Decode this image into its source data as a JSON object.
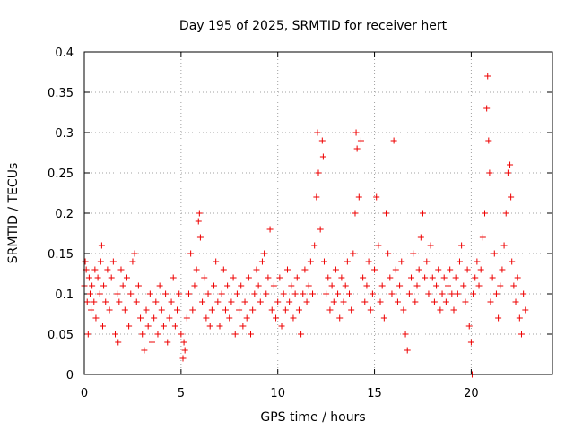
{
  "chart_data": {
    "type": "scatter",
    "title": "Day 195 of 2025, SRMTID for receiver hert",
    "xlabel": "GPS time / hours",
    "ylabel": "SRMTID / TECUs",
    "xlim": [
      0,
      24.2
    ],
    "ylim": [
      0,
      0.4
    ],
    "xticks": [
      0,
      5,
      10,
      15,
      20
    ],
    "xtick_labels": [
      "0",
      "5",
      "10",
      "15",
      "20"
    ],
    "yticks": [
      0,
      0.05,
      0.1,
      0.15,
      0.2,
      0.25,
      0.3,
      0.35,
      0.4
    ],
    "ytick_labels": [
      "0",
      "0.05",
      "0.1",
      "0.15",
      "0.2",
      "0.25",
      "0.3",
      "0.35",
      "0.4"
    ],
    "grid": true,
    "marker": "plus",
    "color": "#ee0000",
    "series": [
      {
        "name": "SRMTID",
        "points": [
          [
            0.0,
            0.11
          ],
          [
            0.05,
            0.14
          ],
          [
            0.1,
            0.13
          ],
          [
            0.15,
            0.09
          ],
          [
            0.2,
            0.05
          ],
          [
            0.25,
            0.12
          ],
          [
            0.3,
            0.1
          ],
          [
            0.35,
            0.08
          ],
          [
            0.4,
            0.11
          ],
          [
            0.5,
            0.09
          ],
          [
            0.55,
            0.13
          ],
          [
            0.6,
            0.07
          ],
          [
            0.7,
            0.12
          ],
          [
            0.8,
            0.1
          ],
          [
            0.85,
            0.14
          ],
          [
            0.9,
            0.16
          ],
          [
            0.95,
            0.06
          ],
          [
            1.0,
            0.11
          ],
          [
            1.1,
            0.09
          ],
          [
            1.2,
            0.13
          ],
          [
            1.3,
            0.08
          ],
          [
            1.4,
            0.12
          ],
          [
            1.5,
            0.14
          ],
          [
            1.6,
            0.05
          ],
          [
            1.7,
            0.1
          ],
          [
            1.75,
            0.04
          ],
          [
            1.8,
            0.09
          ],
          [
            1.9,
            0.13
          ],
          [
            2.0,
            0.11
          ],
          [
            2.1,
            0.08
          ],
          [
            2.2,
            0.12
          ],
          [
            2.3,
            0.06
          ],
          [
            2.4,
            0.1
          ],
          [
            2.5,
            0.14
          ],
          [
            2.6,
            0.15
          ],
          [
            2.7,
            0.09
          ],
          [
            2.8,
            0.11
          ],
          [
            2.9,
            0.07
          ],
          [
            3.0,
            0.05
          ],
          [
            3.1,
            0.03
          ],
          [
            3.2,
            0.08
          ],
          [
            3.3,
            0.06
          ],
          [
            3.4,
            0.1
          ],
          [
            3.5,
            0.04
          ],
          [
            3.6,
            0.07
          ],
          [
            3.7,
            0.09
          ],
          [
            3.8,
            0.05
          ],
          [
            3.9,
            0.11
          ],
          [
            4.0,
            0.08
          ],
          [
            4.1,
            0.06
          ],
          [
            4.2,
            0.1
          ],
          [
            4.3,
            0.04
          ],
          [
            4.4,
            0.07
          ],
          [
            4.5,
            0.09
          ],
          [
            4.6,
            0.12
          ],
          [
            4.7,
            0.06
          ],
          [
            4.8,
            0.08
          ],
          [
            4.9,
            0.1
          ],
          [
            5.0,
            0.05
          ],
          [
            5.1,
            0.02
          ],
          [
            5.15,
            0.04
          ],
          [
            5.2,
            0.03
          ],
          [
            5.3,
            0.07
          ],
          [
            5.4,
            0.1
          ],
          [
            5.5,
            0.15
          ],
          [
            5.6,
            0.08
          ],
          [
            5.7,
            0.11
          ],
          [
            5.8,
            0.13
          ],
          [
            5.9,
            0.19
          ],
          [
            5.95,
            0.2
          ],
          [
            6.0,
            0.17
          ],
          [
            6.1,
            0.09
          ],
          [
            6.2,
            0.12
          ],
          [
            6.3,
            0.07
          ],
          [
            6.4,
            0.1
          ],
          [
            6.5,
            0.06
          ],
          [
            6.6,
            0.08
          ],
          [
            6.7,
            0.11
          ],
          [
            6.8,
            0.14
          ],
          [
            6.9,
            0.09
          ],
          [
            7.0,
            0.06
          ],
          [
            7.1,
            0.1
          ],
          [
            7.2,
            0.13
          ],
          [
            7.3,
            0.08
          ],
          [
            7.4,
            0.11
          ],
          [
            7.5,
            0.07
          ],
          [
            7.6,
            0.09
          ],
          [
            7.7,
            0.12
          ],
          [
            7.8,
            0.05
          ],
          [
            7.9,
            0.1
          ],
          [
            8.0,
            0.08
          ],
          [
            8.1,
            0.11
          ],
          [
            8.2,
            0.06
          ],
          [
            8.3,
            0.09
          ],
          [
            8.4,
            0.07
          ],
          [
            8.5,
            0.12
          ],
          [
            8.6,
            0.05
          ],
          [
            8.7,
            0.08
          ],
          [
            8.8,
            0.1
          ],
          [
            8.9,
            0.13
          ],
          [
            9.0,
            0.11
          ],
          [
            9.1,
            0.09
          ],
          [
            9.2,
            0.14
          ],
          [
            9.3,
            0.15
          ],
          [
            9.4,
            0.1
          ],
          [
            9.5,
            0.12
          ],
          [
            9.6,
            0.18
          ],
          [
            9.7,
            0.08
          ],
          [
            9.8,
            0.11
          ],
          [
            9.9,
            0.07
          ],
          [
            10.0,
            0.09
          ],
          [
            10.1,
            0.12
          ],
          [
            10.2,
            0.06
          ],
          [
            10.3,
            0.1
          ],
          [
            10.4,
            0.08
          ],
          [
            10.5,
            0.13
          ],
          [
            10.6,
            0.09
          ],
          [
            10.7,
            0.11
          ],
          [
            10.8,
            0.07
          ],
          [
            10.9,
            0.1
          ],
          [
            11.0,
            0.12
          ],
          [
            11.1,
            0.08
          ],
          [
            11.2,
            0.05
          ],
          [
            11.3,
            0.1
          ],
          [
            11.4,
            0.13
          ],
          [
            11.5,
            0.09
          ],
          [
            11.6,
            0.11
          ],
          [
            11.7,
            0.14
          ],
          [
            11.8,
            0.1
          ],
          [
            11.9,
            0.16
          ],
          [
            12.0,
            0.22
          ],
          [
            12.05,
            0.3
          ],
          [
            12.1,
            0.25
          ],
          [
            12.2,
            0.18
          ],
          [
            12.3,
            0.29
          ],
          [
            12.35,
            0.27
          ],
          [
            12.4,
            0.14
          ],
          [
            12.5,
            0.1
          ],
          [
            12.6,
            0.12
          ],
          [
            12.7,
            0.08
          ],
          [
            12.8,
            0.11
          ],
          [
            12.9,
            0.09
          ],
          [
            13.0,
            0.13
          ],
          [
            13.1,
            0.1
          ],
          [
            13.2,
            0.07
          ],
          [
            13.3,
            0.12
          ],
          [
            13.4,
            0.09
          ],
          [
            13.5,
            0.11
          ],
          [
            13.6,
            0.14
          ],
          [
            13.7,
            0.1
          ],
          [
            13.8,
            0.08
          ],
          [
            13.9,
            0.15
          ],
          [
            14.0,
            0.2
          ],
          [
            14.05,
            0.3
          ],
          [
            14.1,
            0.28
          ],
          [
            14.2,
            0.22
          ],
          [
            14.3,
            0.29
          ],
          [
            14.4,
            0.12
          ],
          [
            14.5,
            0.09
          ],
          [
            14.6,
            0.11
          ],
          [
            14.7,
            0.14
          ],
          [
            14.8,
            0.08
          ],
          [
            14.9,
            0.1
          ],
          [
            15.0,
            0.13
          ],
          [
            15.1,
            0.22
          ],
          [
            15.2,
            0.16
          ],
          [
            15.3,
            0.09
          ],
          [
            15.4,
            0.11
          ],
          [
            15.5,
            0.07
          ],
          [
            15.6,
            0.2
          ],
          [
            15.7,
            0.15
          ],
          [
            15.8,
            0.12
          ],
          [
            15.9,
            0.1
          ],
          [
            16.0,
            0.29
          ],
          [
            16.1,
            0.13
          ],
          [
            16.2,
            0.09
          ],
          [
            16.3,
            0.11
          ],
          [
            16.4,
            0.14
          ],
          [
            16.5,
            0.08
          ],
          [
            16.6,
            0.05
          ],
          [
            16.7,
            0.03
          ],
          [
            16.8,
            0.1
          ],
          [
            16.9,
            0.12
          ],
          [
            17.0,
            0.15
          ],
          [
            17.1,
            0.09
          ],
          [
            17.2,
            0.11
          ],
          [
            17.3,
            0.13
          ],
          [
            17.4,
            0.17
          ],
          [
            17.5,
            0.2
          ],
          [
            17.6,
            0.12
          ],
          [
            17.7,
            0.14
          ],
          [
            17.8,
            0.1
          ],
          [
            17.9,
            0.16
          ],
          [
            18.0,
            0.12
          ],
          [
            18.1,
            0.09
          ],
          [
            18.2,
            0.11
          ],
          [
            18.3,
            0.13
          ],
          [
            18.4,
            0.08
          ],
          [
            18.5,
            0.1
          ],
          [
            18.6,
            0.12
          ],
          [
            18.7,
            0.09
          ],
          [
            18.8,
            0.11
          ],
          [
            18.9,
            0.13
          ],
          [
            19.0,
            0.1
          ],
          [
            19.1,
            0.08
          ],
          [
            19.2,
            0.12
          ],
          [
            19.3,
            0.1
          ],
          [
            19.4,
            0.14
          ],
          [
            19.5,
            0.16
          ],
          [
            19.6,
            0.11
          ],
          [
            19.7,
            0.09
          ],
          [
            19.8,
            0.13
          ],
          [
            19.9,
            0.06
          ],
          [
            20.0,
            0.04
          ],
          [
            20.05,
            0.0
          ],
          [
            20.1,
            0.1
          ],
          [
            20.2,
            0.12
          ],
          [
            20.3,
            0.14
          ],
          [
            20.4,
            0.11
          ],
          [
            20.5,
            0.13
          ],
          [
            20.6,
            0.17
          ],
          [
            20.7,
            0.2
          ],
          [
            20.8,
            0.33
          ],
          [
            20.85,
            0.37
          ],
          [
            20.9,
            0.29
          ],
          [
            20.95,
            0.25
          ],
          [
            21.0,
            0.09
          ],
          [
            21.1,
            0.12
          ],
          [
            21.2,
            0.15
          ],
          [
            21.3,
            0.1
          ],
          [
            21.4,
            0.07
          ],
          [
            21.5,
            0.11
          ],
          [
            21.6,
            0.13
          ],
          [
            21.7,
            0.16
          ],
          [
            21.8,
            0.2
          ],
          [
            21.9,
            0.25
          ],
          [
            22.0,
            0.26
          ],
          [
            22.05,
            0.22
          ],
          [
            22.1,
            0.14
          ],
          [
            22.2,
            0.11
          ],
          [
            22.3,
            0.09
          ],
          [
            22.4,
            0.12
          ],
          [
            22.5,
            0.07
          ],
          [
            22.6,
            0.05
          ],
          [
            22.7,
            0.1
          ],
          [
            22.8,
            0.08
          ]
        ]
      }
    ]
  }
}
